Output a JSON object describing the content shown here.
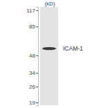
{
  "chart_data": {
    "type": "blot",
    "y_label": "(kD)",
    "categories": [
      "ICAM-1"
    ],
    "values": [
      55
    ],
    "color": "#3a3a3a",
    "log": "y",
    "ylim": [
      18,
      125
    ],
    "yticks": [
      19,
      26,
      34,
      48,
      85,
      117
    ]
  }
}
